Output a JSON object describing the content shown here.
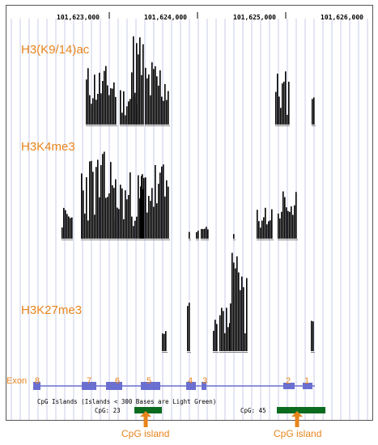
{
  "coordinates": [
    "101,623,000",
    "101,624,000",
    "101,625,000",
    "101,626,000"
  ],
  "tracks": [
    {
      "label": "H3(K9/14)ac"
    },
    {
      "label": "H3K4me3"
    },
    {
      "label": "H3K27me3"
    }
  ],
  "exons": {
    "axis_label": "Exon",
    "numbers": [
      "8",
      "7",
      "6",
      "5",
      "4",
      "3",
      "2",
      "1"
    ]
  },
  "cpg": {
    "title": "CpG Islands (Islands < 300 Bases are Light Green)",
    "islands": [
      "CpG: 23",
      "CpG: 45"
    ]
  },
  "callouts": [
    "CpG island",
    "CpG island"
  ],
  "colors": {
    "label": "#e8841c",
    "gene": "#6a6fd0",
    "cpg": "#0b6b1e",
    "grid": "#c9cdea",
    "bar": "#000000"
  }
}
